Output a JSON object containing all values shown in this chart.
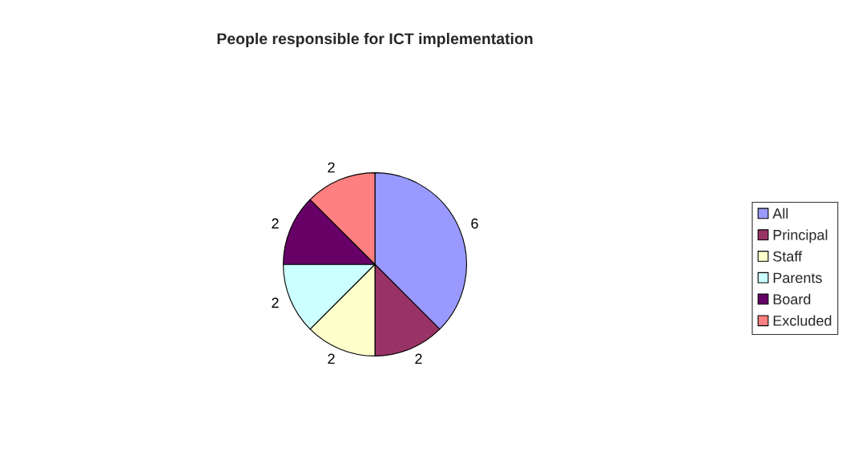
{
  "chart_data": {
    "type": "pie",
    "title": "People responsible for ICT implementation",
    "categories": [
      "All",
      "Principal",
      "Staff",
      "Parents",
      "Board",
      "Excluded"
    ],
    "values": [
      6,
      2,
      2,
      2,
      2,
      2
    ],
    "colors": [
      "#9999ff",
      "#993366",
      "#ffffcc",
      "#ccffff",
      "#660066",
      "#ff8080"
    ],
    "data_labels": true,
    "legend": "right"
  }
}
